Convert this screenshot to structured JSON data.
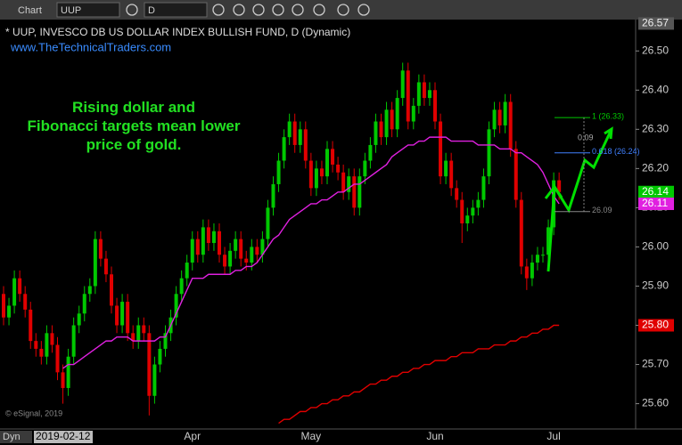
{
  "toolbar": {
    "window": "Chart",
    "symbol": "UUP",
    "interval": "D",
    "mode": "Dyn"
  },
  "chart_data": {
    "type": "candlestick",
    "title": "* UUP, INVESCO DB US DOLLAR INDEX BULLISH FUND, D (Dynamic)",
    "subtitle": "www.TheTechnicalTraders.com",
    "annotation": "Rising dollar and Fibonacci targets mean lower price of gold.",
    "copyright": "© eSignal, 2019",
    "cursor_date": "2019-02-12",
    "categories": [
      null,
      null,
      null,
      null,
      null,
      null,
      null,
      null,
      null,
      null,
      null,
      null,
      null,
      null,
      null,
      null,
      null,
      null,
      null,
      null,
      null,
      null,
      null,
      null,
      null,
      null,
      null,
      null,
      null,
      null,
      null,
      null,
      null,
      null,
      null,
      "Apr",
      null,
      null,
      null,
      null,
      null,
      null,
      null,
      null,
      null,
      null,
      null,
      null,
      null,
      null,
      null,
      null,
      null,
      null,
      null,
      null,
      null,
      "May",
      null,
      null,
      null,
      null,
      null,
      null,
      null,
      null,
      null,
      null,
      null,
      null,
      null,
      null,
      null,
      null,
      null,
      null,
      null,
      null,
      null,
      null,
      "Jun",
      null,
      null,
      null,
      null,
      null,
      null,
      null,
      null,
      null,
      null,
      null,
      null,
      null,
      null,
      null,
      null,
      null,
      null,
      null,
      null,
      null,
      "Jul",
      null
    ],
    "open": [
      25.88,
      25.82,
      25.85,
      25.92,
      25.88,
      25.84,
      25.76,
      25.74,
      25.72,
      25.78,
      25.75,
      25.68,
      25.64,
      25.72,
      25.8,
      25.83,
      25.88,
      25.9,
      26.02,
      25.97,
      25.93,
      25.85,
      25.8,
      25.86,
      25.78,
      25.76,
      25.8,
      25.78,
      25.62,
      25.7,
      25.74,
      25.78,
      25.82,
      25.88,
      25.92,
      25.96,
      26.02,
      25.98,
      26.05,
      26.01,
      26.04,
      25.98,
      25.95,
      25.99,
      26.02,
      25.97,
      25.96,
      26.0,
      25.98,
      26.02,
      26.1,
      26.16,
      26.22,
      26.28,
      26.32,
      26.26,
      26.3,
      26.22,
      26.15,
      26.2,
      26.18,
      26.25,
      26.21,
      26.19,
      26.14,
      26.18,
      26.1,
      26.18,
      26.22,
      26.26,
      26.32,
      26.28,
      26.35,
      26.3,
      26.38,
      26.45,
      26.32,
      26.36,
      26.42,
      26.38,
      26.4,
      26.32,
      26.18,
      26.22,
      26.15,
      26.12,
      26.06,
      26.08,
      26.1,
      26.12,
      26.18,
      26.3,
      26.35,
      26.31,
      26.37,
      26.25,
      26.12,
      25.95,
      25.92,
      25.96,
      25.98,
      25.98,
      26.05,
      26.17
    ],
    "high": [
      25.9,
      25.87,
      25.94,
      25.94,
      25.9,
      25.86,
      25.78,
      25.76,
      25.8,
      25.8,
      25.77,
      25.7,
      25.74,
      25.82,
      25.85,
      25.9,
      25.92,
      26.04,
      26.04,
      25.99,
      25.95,
      25.87,
      25.88,
      25.88,
      25.8,
      25.82,
      25.82,
      25.8,
      25.72,
      25.76,
      25.8,
      25.84,
      25.9,
      25.94,
      25.98,
      26.04,
      26.04,
      26.07,
      26.07,
      26.06,
      26.06,
      26.0,
      26.01,
      26.04,
      26.04,
      25.99,
      26.02,
      26.02,
      26.04,
      26.12,
      26.18,
      26.24,
      26.3,
      26.34,
      26.34,
      26.32,
      26.32,
      26.24,
      26.22,
      26.22,
      26.27,
      26.27,
      26.23,
      26.21,
      26.2,
      26.2,
      26.2,
      26.24,
      26.28,
      26.34,
      26.34,
      26.37,
      26.37,
      26.4,
      26.47,
      26.47,
      26.38,
      26.44,
      26.44,
      26.42,
      26.42,
      26.34,
      26.24,
      26.24,
      26.17,
      26.14,
      26.1,
      26.12,
      26.14,
      26.2,
      26.32,
      26.37,
      26.37,
      26.39,
      26.39,
      26.27,
      26.14,
      25.97,
      25.98,
      26.0,
      26.0,
      26.07,
      26.19,
      26.19
    ],
    "low": [
      25.8,
      25.8,
      25.83,
      25.86,
      25.82,
      25.74,
      25.72,
      25.7,
      25.7,
      25.73,
      25.66,
      25.6,
      25.62,
      25.7,
      25.78,
      25.81,
      25.86,
      25.88,
      25.95,
      25.91,
      25.83,
      25.78,
      25.78,
      25.76,
      25.74,
      25.74,
      25.76,
      25.57,
      25.6,
      25.68,
      25.72,
      25.76,
      25.8,
      25.86,
      25.9,
      25.94,
      25.96,
      25.96,
      25.99,
      25.99,
      25.96,
      25.93,
      25.93,
      25.97,
      25.95,
      25.94,
      25.94,
      25.96,
      25.96,
      26.0,
      26.08,
      26.14,
      26.2,
      26.26,
      26.24,
      26.24,
      26.2,
      26.13,
      26.13,
      26.16,
      26.16,
      26.19,
      26.17,
      26.12,
      26.12,
      26.08,
      26.08,
      26.16,
      26.2,
      26.24,
      26.26,
      26.26,
      26.28,
      26.28,
      26.36,
      26.3,
      26.3,
      26.34,
      26.36,
      26.36,
      26.3,
      26.16,
      26.16,
      26.13,
      26.1,
      26.01,
      26.04,
      26.06,
      26.08,
      26.1,
      26.16,
      26.28,
      26.29,
      26.29,
      26.23,
      26.1,
      25.93,
      25.89,
      25.9,
      25.94,
      25.96,
      25.96,
      26.03,
      26.12
    ],
    "close": [
      25.82,
      25.85,
      25.92,
      25.88,
      25.84,
      25.76,
      25.74,
      25.72,
      25.78,
      25.75,
      25.68,
      25.64,
      25.72,
      25.8,
      25.83,
      25.88,
      25.9,
      26.02,
      25.97,
      25.93,
      25.85,
      25.8,
      25.86,
      25.78,
      25.76,
      25.8,
      25.78,
      25.62,
      25.7,
      25.74,
      25.78,
      25.82,
      25.88,
      25.92,
      25.96,
      26.02,
      25.98,
      26.05,
      26.01,
      26.04,
      25.98,
      25.95,
      25.99,
      26.02,
      25.97,
      25.96,
      26.0,
      25.98,
      26.02,
      26.1,
      26.16,
      26.22,
      26.28,
      26.32,
      26.26,
      26.3,
      26.22,
      26.15,
      26.2,
      26.18,
      26.25,
      26.21,
      26.19,
      26.14,
      26.18,
      26.1,
      26.18,
      26.22,
      26.26,
      26.32,
      26.28,
      26.35,
      26.3,
      26.38,
      26.45,
      26.32,
      26.36,
      26.42,
      26.38,
      26.4,
      26.32,
      26.18,
      26.22,
      26.15,
      26.12,
      26.06,
      26.08,
      26.1,
      26.12,
      26.18,
      26.3,
      26.35,
      26.31,
      26.37,
      26.25,
      26.12,
      25.95,
      25.92,
      25.96,
      25.98,
      25.98,
      26.05,
      26.17,
      26.14
    ],
    "up_color": "#00c800",
    "down_color": "#e00000",
    "lines": [
      {
        "color": "#e020e0",
        "values": [
          null,
          null,
          null,
          null,
          null,
          null,
          null,
          null,
          null,
          null,
          null,
          25.69,
          25.7,
          25.7,
          25.71,
          25.72,
          25.73,
          25.74,
          25.75,
          25.76,
          25.76,
          25.77,
          25.77,
          25.77,
          25.76,
          25.76,
          25.76,
          25.76,
          25.76,
          25.77,
          25.77,
          25.8,
          25.83,
          25.86,
          25.89,
          25.92,
          25.92,
          25.92,
          25.93,
          25.93,
          25.93,
          25.93,
          25.93,
          25.94,
          25.94,
          25.95,
          25.95,
          25.96,
          25.98,
          26.0,
          26.02,
          26.03,
          26.05,
          26.07,
          26.08,
          26.09,
          26.1,
          26.11,
          26.11,
          26.12,
          26.12,
          26.13,
          26.14,
          26.14,
          26.15,
          26.16,
          26.16,
          26.17,
          26.18,
          26.19,
          26.2,
          26.21,
          26.23,
          26.24,
          26.25,
          26.26,
          26.26,
          26.27,
          26.27,
          26.28,
          26.28,
          26.28,
          26.28,
          26.27,
          26.27,
          26.27,
          26.27,
          26.27,
          26.26,
          26.26,
          26.26,
          26.26,
          26.25,
          26.25,
          26.25,
          26.24,
          26.24,
          26.23,
          26.22,
          26.21,
          26.19,
          26.16,
          26.13,
          26.11
        ]
      },
      {
        "color": "#e00000",
        "values": [
          null,
          null,
          null,
          null,
          null,
          null,
          null,
          null,
          null,
          null,
          null,
          null,
          null,
          null,
          null,
          null,
          null,
          null,
          null,
          null,
          null,
          null,
          null,
          null,
          null,
          null,
          null,
          null,
          null,
          null,
          null,
          null,
          null,
          null,
          null,
          null,
          null,
          null,
          null,
          null,
          null,
          null,
          null,
          null,
          null,
          null,
          null,
          null,
          null,
          null,
          null,
          25.55,
          25.56,
          25.56,
          25.57,
          25.58,
          25.58,
          25.59,
          25.59,
          25.6,
          25.6,
          25.61,
          25.61,
          25.62,
          25.62,
          25.63,
          25.63,
          25.64,
          25.65,
          25.65,
          25.66,
          25.66,
          25.67,
          25.67,
          25.68,
          25.68,
          25.69,
          25.69,
          25.7,
          25.7,
          25.71,
          25.71,
          25.71,
          25.72,
          25.72,
          25.73,
          25.73,
          25.73,
          25.74,
          25.74,
          25.74,
          25.75,
          25.75,
          25.75,
          25.76,
          25.76,
          25.77,
          25.77,
          25.78,
          25.78,
          25.79,
          25.79,
          25.8,
          25.8
        ]
      }
    ],
    "price_tags": [
      {
        "value": 26.14,
        "color": "#00c800"
      },
      {
        "value": 26.11,
        "color": "#e020e0"
      },
      {
        "value": 25.8,
        "label": "25.80",
        "color": "#e00000"
      }
    ],
    "top_label": 26.57,
    "fib_levels": [
      {
        "value": 26.33,
        "label": "1 (26.33)",
        "color": "#00c800"
      },
      {
        "value": 26.24,
        "label": "0.618 (26.24)",
        "color": "#4080ff"
      },
      {
        "value": 26.09,
        "label": "26.09",
        "color": "#888888"
      }
    ],
    "fib_range": 0.09,
    "ylim": [
      25.54,
      26.58
    ],
    "yticks": [
      {
        "value": 25.6,
        "label": "25.60"
      },
      {
        "value": 25.7,
        "label": "25.70"
      },
      {
        "value": 25.8,
        "label": "25.80"
      },
      {
        "value": 25.9,
        "label": "25.90"
      },
      {
        "value": 26.0,
        "label": "26.00"
      },
      {
        "value": 26.1,
        "label": "26.10"
      },
      {
        "value": 26.2,
        "label": "26.20"
      },
      {
        "value": 26.3,
        "label": "26.30"
      },
      {
        "value": 26.4,
        "label": "26.40"
      },
      {
        "value": 26.5,
        "label": "26.50"
      }
    ],
    "grid": false
  }
}
